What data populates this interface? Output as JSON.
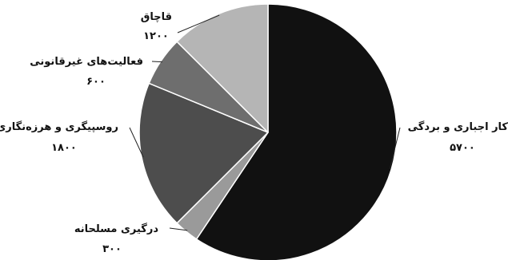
{
  "chart_data": {
    "type": "pie",
    "title": "",
    "legend": "none",
    "slices": [
      {
        "label": "کار اجباری و بردگی",
        "value": 5700,
        "value_label": "۵۷۰۰",
        "color": "#111111"
      },
      {
        "label": "درگیری مسلحانه",
        "value": 300,
        "value_label": "۳۰۰",
        "color": "#9a9a9a"
      },
      {
        "label": "روسپیگری و هرزه‌نگاری",
        "value": 1800,
        "value_label": "۱۸۰۰",
        "color": "#4d4d4d"
      },
      {
        "label": "فعالیت‌های غیرقانونی",
        "value": 600,
        "value_label": "۶۰۰",
        "color": "#6e6e6e"
      },
      {
        "label": "قاچاق",
        "value": 1200,
        "value_label": "۱۲۰۰",
        "color": "#b5b5b5"
      }
    ]
  }
}
